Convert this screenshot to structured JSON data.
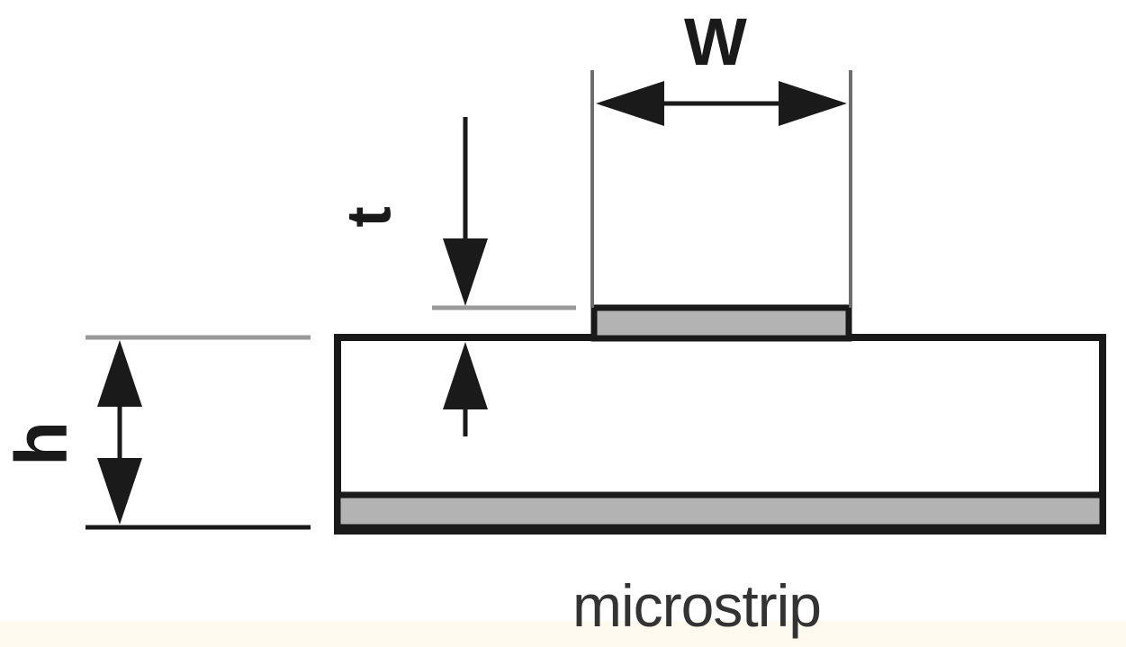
{
  "diagram": {
    "title": "microstrip",
    "labels": {
      "width": "W",
      "thickness": "t",
      "height": "h"
    },
    "colors": {
      "line": "#1a1a1a",
      "conductor_fill": "#b3b3b3",
      "substrate_fill": "#ffffff",
      "guide_line": "#9a9a9a",
      "bottom_band": "#fdf9ee"
    }
  }
}
